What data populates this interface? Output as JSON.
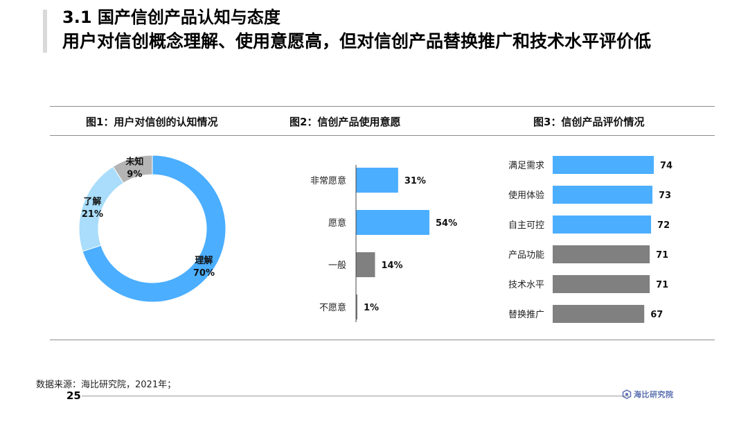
{
  "header": {
    "title": "3.1 国产信创产品认知与态度",
    "subtitle": "用户对信创概念理解、使用意愿高，但对信创产品替换推广和技术水平评价低"
  },
  "colors": {
    "primary_blue": "#4baeff",
    "light_blue": "#a9ddfb",
    "gray": "#b4b4b4",
    "dark_gray": "#808080",
    "axis": "#444444"
  },
  "footer": {
    "source": "数据来源：海比研究院，2021年；",
    "page_number": "25",
    "logo_text": "海比研究院"
  },
  "chart_data": [
    {
      "type": "pie",
      "title": "图1：用户对信创的认知情况",
      "slices": [
        {
          "label": "理解",
          "value": 70,
          "display": "70%",
          "color": "#4baeff"
        },
        {
          "label": "了解",
          "value": 21,
          "display": "21%",
          "color": "#a9ddfb"
        },
        {
          "label": "未知",
          "value": 9,
          "display": "9%",
          "color": "#b4b4b4"
        }
      ]
    },
    {
      "type": "bar",
      "orientation": "horizontal",
      "title": "图2：信创产品使用意愿",
      "categories": [
        "非常愿意",
        "愿意",
        "一般",
        "不愿意"
      ],
      "values": [
        31,
        54,
        14,
        1
      ],
      "labels": [
        "31%",
        "54%",
        "14%",
        "1%"
      ],
      "colors": [
        "#4baeff",
        "#4baeff",
        "#808080",
        "#808080"
      ]
    },
    {
      "type": "bar",
      "orientation": "horizontal",
      "title": "图3：信创产品评价情况",
      "categories": [
        "满足需求",
        "使用体验",
        "自主可控",
        "产品功能",
        "技术水平",
        "替换推广"
      ],
      "values": [
        74,
        73,
        72,
        71,
        71,
        67
      ],
      "labels": [
        "74",
        "73",
        "72",
        "71",
        "71",
        "67"
      ],
      "colors": [
        "#4baeff",
        "#4baeff",
        "#4baeff",
        "#808080",
        "#808080",
        "#808080"
      ]
    }
  ]
}
